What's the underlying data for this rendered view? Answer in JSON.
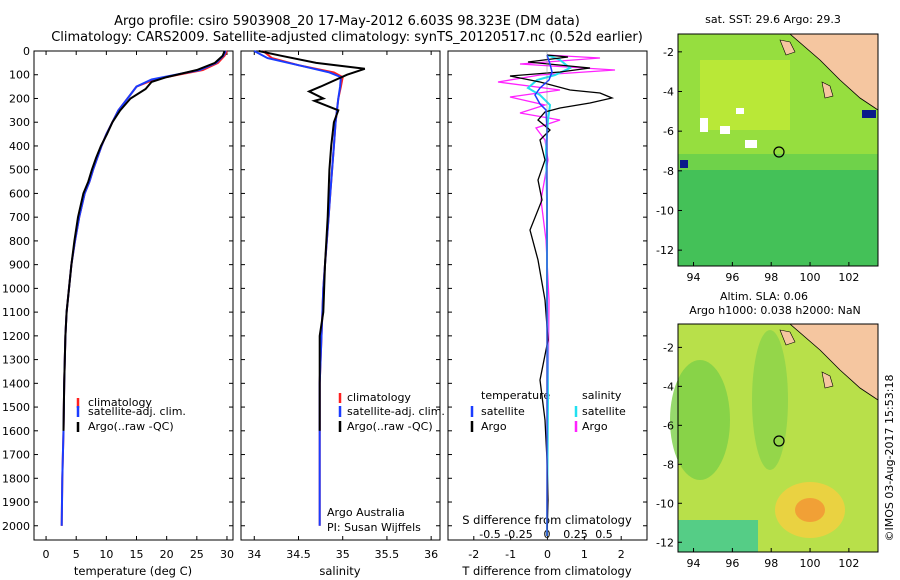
{
  "title_line1": "Argo profile: csiro 5903908_20 17-May-2012 6.603S 98.323E (DM data)",
  "title_line2": "Climatology: CARS2009. Satellite-adjusted climatology: synTS_20120517.nc (0.52d earlier)",
  "colors": {
    "clim": "#ff2020",
    "satclim": "#1a3cff",
    "argo": "#000000",
    "sat_cyan": "#22e0f0",
    "argo_mag": "#ff22ff"
  },
  "depth_axis": {
    "ylim": [
      0,
      2060
    ],
    "ticks": [
      0,
      100,
      200,
      300,
      400,
      500,
      600,
      700,
      800,
      900,
      1000,
      1100,
      1200,
      1300,
      1400,
      1500,
      1600,
      1700,
      1800,
      1900,
      2000
    ]
  },
  "temperature_panel": {
    "xlabel": "temperature (deg C)",
    "xlim": [
      -2,
      31
    ],
    "xticks": [
      0,
      5,
      10,
      15,
      20,
      25,
      30
    ],
    "legend": [
      "climatology",
      "satellite-adj. clim.",
      "Argo(..raw -QC)"
    ]
  },
  "salinity_panel": {
    "xlabel": "salinity",
    "xlim": [
      33.85,
      36.1
    ],
    "xticks": [
      "34",
      "34.5",
      "35",
      "35.5",
      "36"
    ],
    "legend": [
      "climatology",
      "satellite-adj. clim.",
      "Argo(..raw -QC)"
    ],
    "note1": "Argo Australia",
    "note2": "PI: Susan Wijffels"
  },
  "diff_panel": {
    "xlabel_bottom": "T difference from climatology",
    "xlabel_top": "S difference from climatology",
    "xticks": [
      "-2",
      "-1",
      "0",
      "1",
      "2"
    ],
    "sticks": [
      "-0.5",
      "-0.25",
      "0",
      "0.25",
      "0.5"
    ],
    "legend_temp_title": "temperature",
    "legend_sal_title": "salinity",
    "legend_items": [
      "satellite",
      "Argo"
    ]
  },
  "sst_map": {
    "title": "sat. SST: 29.6  Argo: 29.3",
    "xticks": [
      "94",
      "96",
      "98",
      "100",
      "102"
    ],
    "yticks": [
      "-2",
      "-4",
      "-6",
      "-8",
      "-10",
      "-12"
    ]
  },
  "sla_map": {
    "title1": "Altim. SLA: 0.06",
    "title2": "Argo h1000: 0.038 h2000: NaN",
    "xticks": [
      "94",
      "96",
      "98",
      "100",
      "102"
    ],
    "yticks": [
      "-2",
      "-4",
      "-6",
      "-8",
      "-10",
      "-12"
    ]
  },
  "stamp": "©IMOS 03-Aug-2017 15:53:18",
  "chart_data": [
    {
      "type": "line",
      "title": "temperature",
      "xlabel": "temperature (deg C)",
      "xlim": [
        -2,
        31
      ],
      "ylim": [
        0,
        2060
      ],
      "series": [
        {
          "name": "climatology",
          "x": [
            30,
            29.6,
            28.5,
            26,
            22,
            18,
            15,
            13.5,
            12,
            11,
            10,
            9.2,
            8.5,
            7.8,
            7.2,
            6.4,
            5.5,
            4.8,
            4.2,
            3.8,
            3.4,
            3.2,
            3.0,
            2.9,
            2.7,
            2.6
          ],
          "y": [
            0,
            20,
            50,
            80,
            100,
            120,
            150,
            200,
            250,
            300,
            350,
            400,
            450,
            500,
            550,
            600,
            700,
            800,
            900,
            1000,
            1100,
            1200,
            1400,
            1600,
            1800,
            2000
          ]
        },
        {
          "name": "satellite-adj. clim.",
          "x": [
            29.8,
            29.4,
            28.2,
            25.5,
            21.5,
            17.5,
            15,
            13.5,
            12,
            11,
            10,
            9.2,
            8.5,
            7.8,
            7.2,
            6.4,
            5.5,
            4.8,
            4.2,
            3.8,
            3.4,
            3.2,
            3.0,
            2.9,
            2.7,
            2.6
          ],
          "y": [
            0,
            20,
            50,
            80,
            100,
            120,
            150,
            200,
            250,
            300,
            350,
            400,
            450,
            500,
            550,
            600,
            700,
            800,
            900,
            1000,
            1100,
            1200,
            1400,
            1600,
            1800,
            2000
          ]
        },
        {
          "name": "Argo(..raw -QC)",
          "x": [
            29.6,
            29.3,
            28,
            25,
            20,
            17.5,
            16.5,
            14,
            12.3,
            11,
            10.1,
            9.1,
            8.3,
            7.6,
            7.0,
            6.2,
            5.3,
            4.7,
            4.2,
            3.8,
            3.4,
            3.2,
            3.0,
            2.9
          ],
          "y": [
            0,
            20,
            50,
            80,
            110,
            130,
            160,
            200,
            250,
            300,
            350,
            400,
            450,
            500,
            550,
            600,
            700,
            800,
            900,
            1000,
            1100,
            1200,
            1400,
            1600
          ]
        }
      ]
    },
    {
      "type": "line",
      "title": "salinity",
      "xlabel": "salinity",
      "xlim": [
        33.85,
        36.1
      ],
      "ylim": [
        0,
        2060
      ],
      "series": [
        {
          "name": "climatology",
          "x": [
            34.1,
            34.2,
            34.5,
            34.9,
            35.0,
            34.98,
            34.95,
            34.92,
            34.9,
            34.88,
            34.86,
            34.84,
            34.82,
            34.8,
            34.78,
            34.76,
            34.74,
            34.74,
            34.74,
            34.74
          ],
          "y": [
            0,
            30,
            60,
            90,
            110,
            150,
            200,
            300,
            400,
            500,
            600,
            700,
            800,
            900,
            1000,
            1200,
            1400,
            1600,
            1800,
            2000
          ]
        },
        {
          "name": "satellite-adj. clim.",
          "x": [
            34.0,
            34.15,
            34.5,
            34.85,
            34.98,
            34.97,
            34.95,
            34.92,
            34.9,
            34.88,
            34.86,
            34.84,
            34.82,
            34.8,
            34.78,
            34.76,
            34.74,
            34.74,
            34.74,
            34.74
          ],
          "y": [
            0,
            30,
            60,
            90,
            110,
            150,
            200,
            300,
            400,
            500,
            600,
            700,
            800,
            900,
            1000,
            1200,
            1400,
            1600,
            1800,
            2000
          ]
        },
        {
          "name": "Argo(..raw -QC)",
          "x": [
            34.05,
            34.3,
            34.7,
            35.25,
            35.05,
            34.75,
            34.62,
            34.78,
            34.68,
            34.95,
            34.9,
            34.87,
            34.85,
            34.83,
            34.8,
            34.78,
            34.74,
            34.74,
            34.74
          ],
          "y": [
            0,
            20,
            50,
            75,
            100,
            150,
            170,
            200,
            210,
            250,
            300,
            400,
            500,
            700,
            900,
            1100,
            1200,
            1400,
            1600
          ]
        }
      ]
    }
  ]
}
